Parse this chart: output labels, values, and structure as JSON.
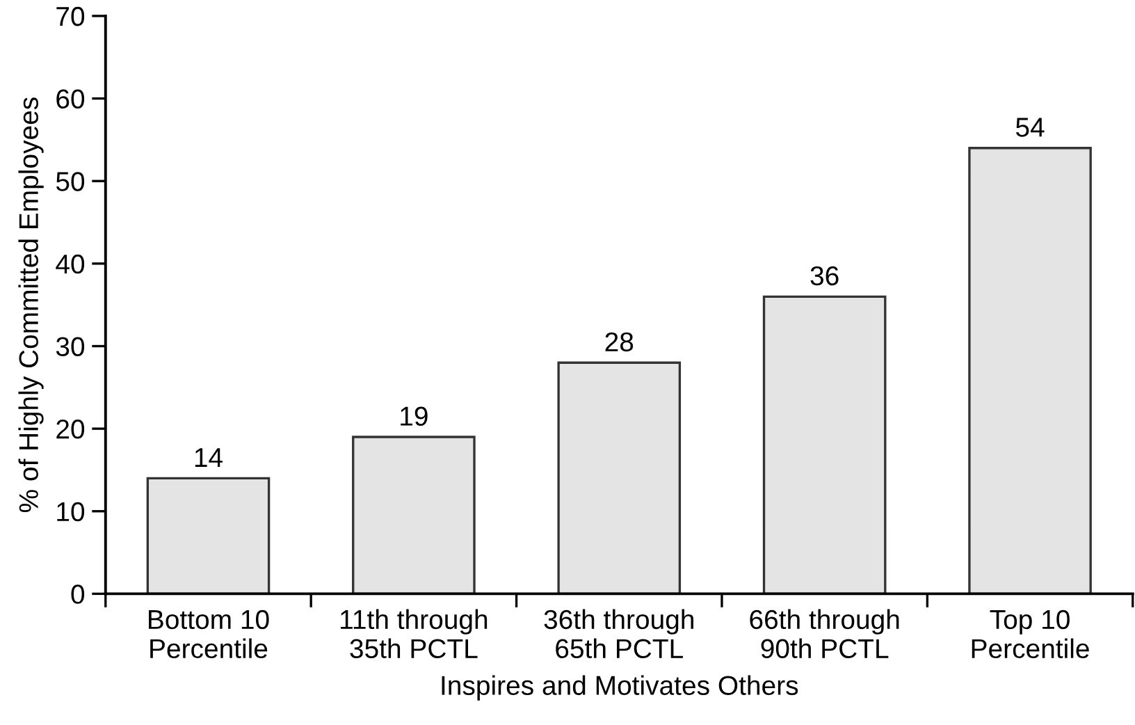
{
  "chart_data": {
    "type": "bar",
    "xlabel": "Inspires and Motivates Others",
    "ylabel": "% of Highly Committed Employees",
    "categories": [
      "Bottom 10\nPercentile",
      "11th through\n35th PCTL",
      "36th through\n65th PCTL",
      "66th through\n90th PCTL",
      "Top 10\nPercentile"
    ],
    "values": [
      14,
      19,
      28,
      36,
      54
    ],
    "color": "#e4e4e4",
    "ylim": [
      0,
      70
    ],
    "yticks": [
      0,
      10,
      20,
      30,
      40,
      50,
      60,
      70
    ],
    "data_labels": true,
    "grid": false,
    "legend": false
  }
}
